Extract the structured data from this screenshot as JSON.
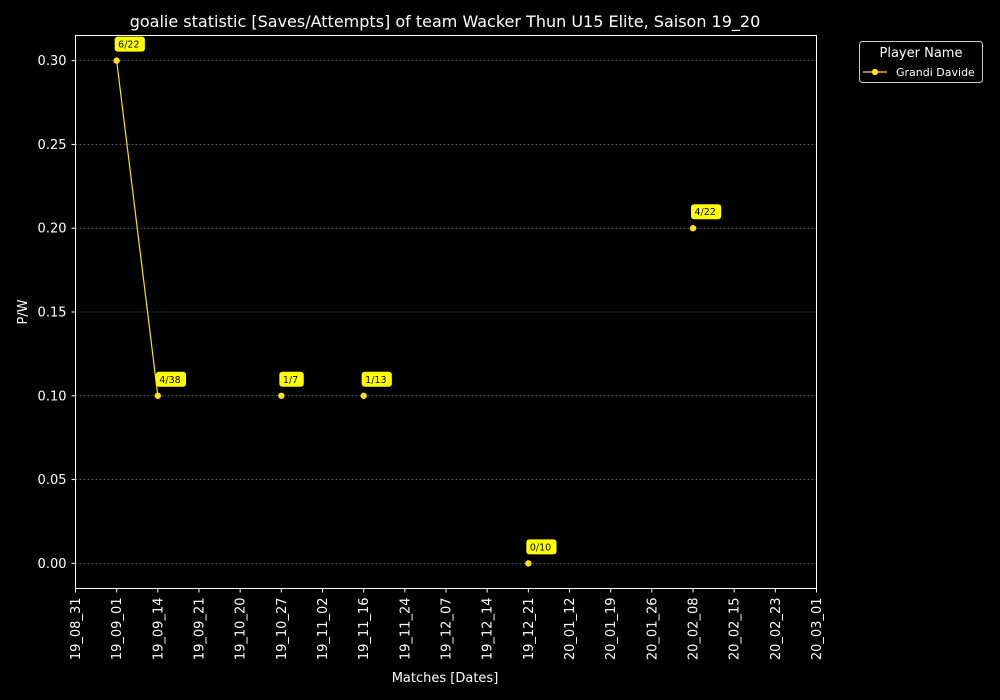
{
  "chart_data": {
    "type": "line",
    "title": "goalie statistic [Saves/Attempts] of team Wacker Thun U15 Elite, Saison 19_20",
    "xlabel": "Matches [Dates]",
    "ylabel": "P/W",
    "x_ticks": [
      "19_08_31",
      "19_09_01",
      "19_09_14",
      "19_09_21",
      "19_10_20",
      "19_10_27",
      "19_11_02",
      "19_11_16",
      "19_11_24",
      "19_12_07",
      "19_12_14",
      "19_12_21",
      "20_01_12",
      "20_01_19",
      "20_01_26",
      "20_02_08",
      "20_02_15",
      "20_02_23",
      "20_03_01"
    ],
    "y_ticks": [
      "0.00",
      "0.05",
      "0.10",
      "0.15",
      "0.20",
      "0.25",
      "0.30"
    ],
    "ylim": [
      -0.015,
      0.315
    ],
    "grid": "horizontal dashed",
    "legend": {
      "title": "Player Name",
      "placement": "outside top-right"
    },
    "series": [
      {
        "name": "Grandi Davide",
        "color": "#ffe01b",
        "points": [
          {
            "x": "19_09_01",
            "y": 0.3,
            "label": "6/22",
            "connected_to_next": true
          },
          {
            "x": "19_09_14",
            "y": 0.1,
            "label": "4/38",
            "connected_to_next": false
          },
          {
            "x": "19_10_27",
            "y": 0.1,
            "label": "1/7",
            "connected_to_next": false
          },
          {
            "x": "19_11_16",
            "y": 0.1,
            "label": "1/13",
            "connected_to_next": false
          },
          {
            "x": "19_12_21",
            "y": 0.0,
            "label": "0/10",
            "connected_to_next": false
          },
          {
            "x": "20_02_08",
            "y": 0.2,
            "label": "4/22",
            "connected_to_next": false
          }
        ]
      }
    ]
  },
  "colors": {
    "background": "#000000",
    "foreground": "#ffffff",
    "grid": "#888888",
    "label_box": "#ffff00"
  }
}
